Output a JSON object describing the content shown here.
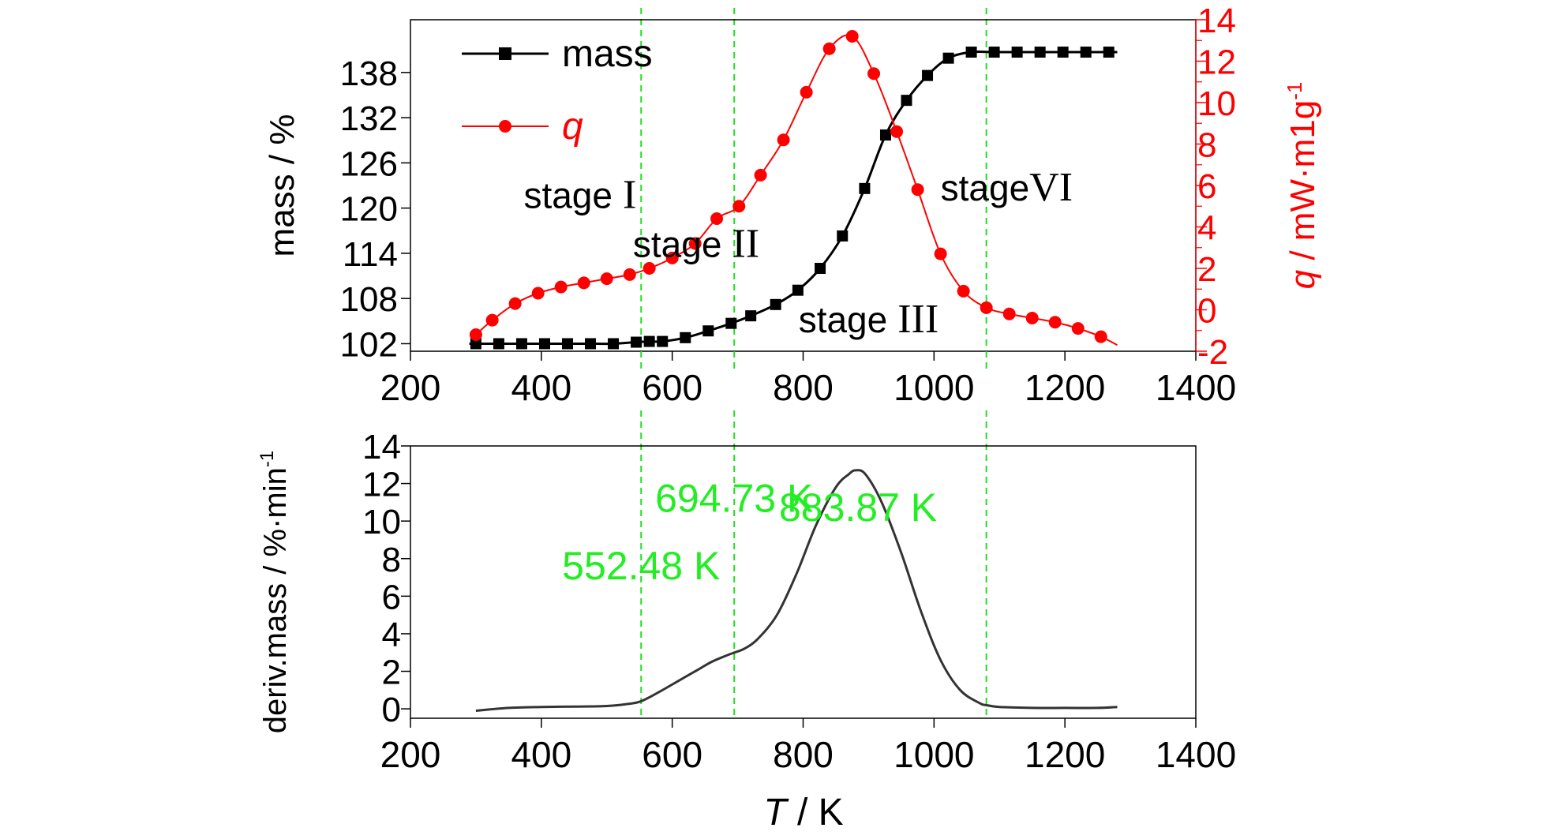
{
  "colors": {
    "mass": "#000000",
    "q": "#ff0000",
    "deriv": "#333333",
    "marker_lines": "#22dd22",
    "annotations": "#22ee22"
  },
  "chart_data": [
    {
      "type": "line",
      "panel": "top",
      "x_ticks": [
        "200",
        "400",
        "600",
        "800",
        "1000",
        "1200",
        "1400"
      ],
      "xlim": [
        200,
        1400
      ],
      "ylabel": "mass / %",
      "y_ticks": [
        "102",
        "108",
        "114",
        "120",
        "126",
        "132",
        "138"
      ],
      "ylim": [
        101,
        145
      ],
      "y2label_var": "q",
      "y2label_unit": " / mW·m1g",
      "y2label_sup": "-1",
      "y2_ticks": [
        "-2",
        "0",
        "2",
        "4",
        "6",
        "8",
        "10",
        "12",
        "14"
      ],
      "y2lim": [
        -2,
        14
      ],
      "legend": {
        "placement": "top-left",
        "entries": [
          {
            "label": "mass",
            "marker": "square",
            "series": "mass"
          },
          {
            "label": "q",
            "marker": "circle",
            "series": "q"
          }
        ]
      },
      "series": [
        {
          "name": "mass",
          "axis": "left",
          "marker": "square",
          "x": [
            300,
            335,
            370,
            405,
            440,
            475,
            510,
            545,
            565,
            585,
            620,
            655,
            690,
            720,
            758,
            792,
            826,
            860,
            894,
            926,
            958,
            990,
            1022,
            1057,
            1092,
            1127,
            1162,
            1197,
            1232,
            1267
          ],
          "y": [
            102.0,
            102.0,
            102.0,
            102.0,
            102.0,
            102.0,
            102.0,
            102.2,
            102.3,
            102.3,
            102.8,
            103.7,
            104.7,
            105.7,
            107.2,
            109.1,
            112.0,
            116.3,
            122.6,
            129.7,
            134.3,
            137.6,
            139.9,
            140.7,
            140.7,
            140.7,
            140.7,
            140.7,
            140.7,
            140.7
          ]
        },
        {
          "name": "q",
          "axis": "right",
          "marker": "circle",
          "x": [
            300,
            325,
            360,
            395,
            430,
            465,
            500,
            535,
            565,
            600,
            635,
            668,
            702,
            735,
            770,
            805,
            840,
            875,
            908,
            943,
            975,
            1010,
            1045,
            1080,
            1115,
            1150,
            1185,
            1220,
            1255
          ],
          "y": [
            -1.2,
            -0.5,
            0.3,
            0.8,
            1.1,
            1.3,
            1.5,
            1.7,
            2.0,
            2.5,
            3.2,
            4.4,
            5.0,
            6.5,
            8.2,
            10.5,
            12.6,
            13.2,
            11.4,
            8.6,
            5.8,
            2.7,
            0.9,
            0.1,
            -0.2,
            -0.4,
            -0.6,
            -0.9,
            -1.3
          ]
        }
      ],
      "stage_labels": [
        {
          "word": "stage",
          "roman": " I",
          "x": 373,
          "y_value": 120
        },
        {
          "word": "stage",
          "roman": " II",
          "x": 540,
          "y_value": 113.5
        },
        {
          "word": "stage",
          "roman": " III",
          "x": 793,
          "y_value": 103.5
        },
        {
          "word": "stage",
          "roman": "VI",
          "x": 1010,
          "y_value": 121
        }
      ],
      "vlines": [
        552.48,
        694.73,
        1080
      ]
    },
    {
      "type": "line",
      "panel": "bottom",
      "xlabel_var": "T",
      "xlabel_unit": " / K",
      "x_ticks": [
        "200",
        "400",
        "600",
        "800",
        "1000",
        "1200",
        "1400"
      ],
      "xlim": [
        200,
        1400
      ],
      "ylabel": "deriv.mass / %·min",
      "ylabel_sup": "-1",
      "y_ticks": [
        "0",
        "2",
        "4",
        "6",
        "8",
        "10",
        "12",
        "14"
      ],
      "ylim": [
        -0.5,
        14
      ],
      "series": [
        {
          "name": "deriv.mass",
          "x": [
            300,
            350,
            400,
            450,
            500,
            530,
            552,
            580,
            610,
            640,
            660,
            680,
            695,
            710,
            730,
            760,
            790,
            820,
            850,
            870,
            880,
            895,
            920,
            950,
            980,
            1010,
            1040,
            1070,
            1080,
            1100,
            1150,
            1200,
            1250,
            1280
          ],
          "y": [
            -0.1,
            0.05,
            0.1,
            0.12,
            0.15,
            0.25,
            0.4,
            0.9,
            1.5,
            2.1,
            2.5,
            2.8,
            3.0,
            3.2,
            3.7,
            5.0,
            7.2,
            9.8,
            11.8,
            12.5,
            12.7,
            12.5,
            11.0,
            8.3,
            5.2,
            2.6,
            1.0,
            0.3,
            0.2,
            0.1,
            0.05,
            0.05,
            0.05,
            0.1
          ]
        }
      ],
      "annotations": [
        {
          "text": "552.48 K",
          "x": 552.48,
          "y_value": 6.9
        },
        {
          "text": "694.73 K",
          "x": 694.73,
          "y_value": 10.5
        },
        {
          "text": "883.87 K",
          "x": 883.87,
          "y_value": 10.0
        }
      ],
      "vlines": [
        552.48,
        694.73,
        1080
      ]
    }
  ]
}
